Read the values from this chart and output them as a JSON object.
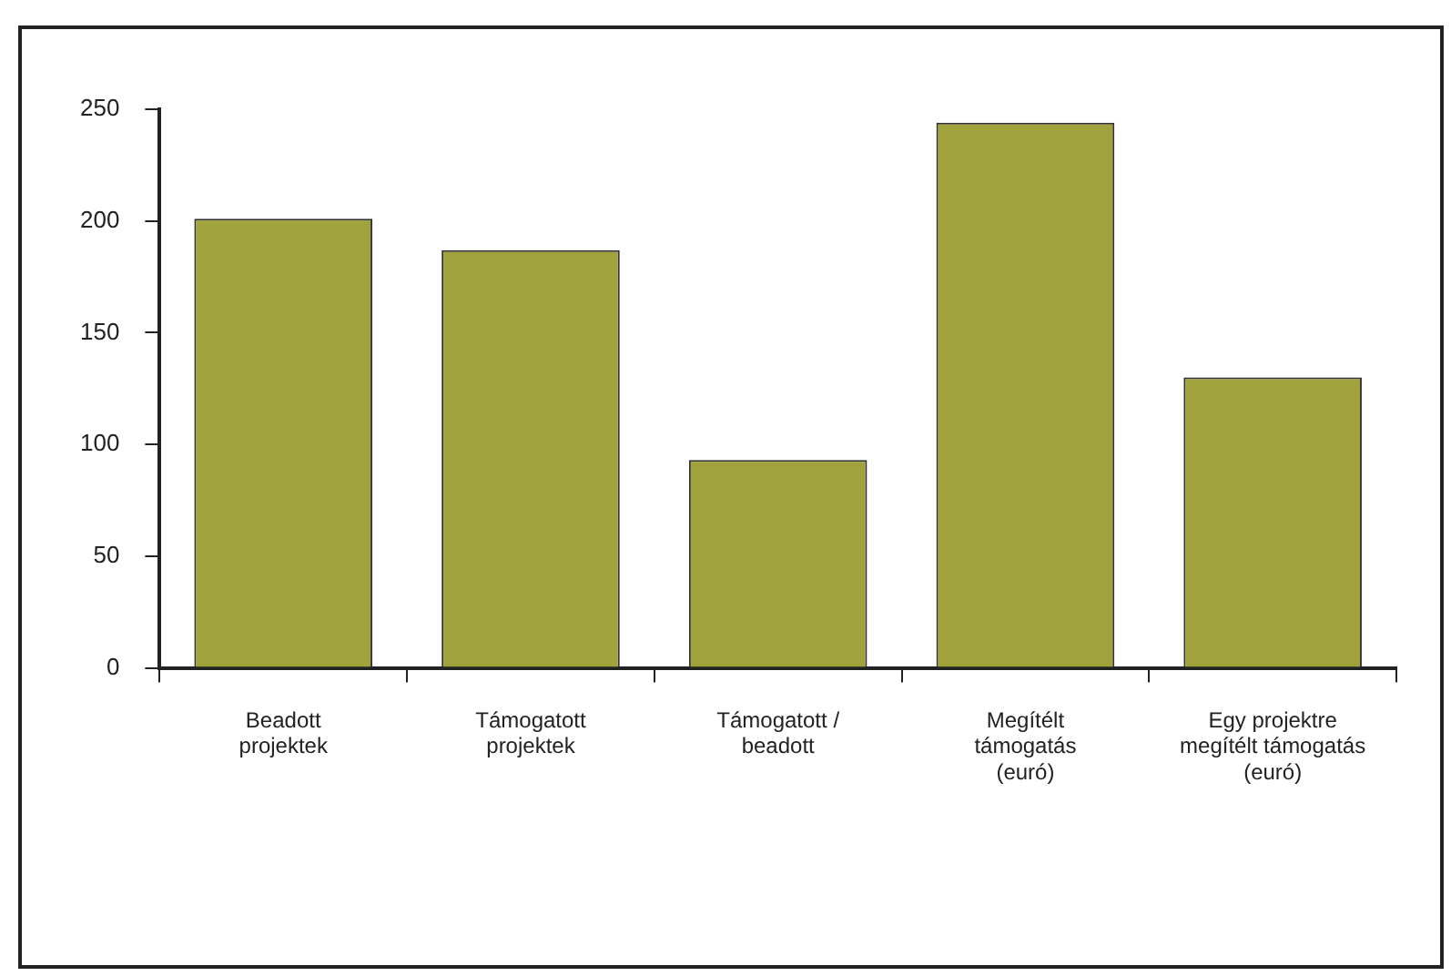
{
  "chart_data": {
    "type": "bar",
    "categories": [
      "Beadott\nprojektek",
      "Támogatott\nprojektek",
      "Támogatott /\nbeadott",
      "Megítélt\ntámogatás\n(euró)",
      "Egy projektre\nmegítélt támogatás\n(euró)"
    ],
    "values": [
      201,
      187,
      93,
      244,
      130
    ],
    "color": "#a0a23c",
    "ylim": [
      0,
      250
    ],
    "yticks": [
      0,
      50,
      100,
      150,
      200,
      250
    ],
    "grid": false,
    "legend": false
  }
}
